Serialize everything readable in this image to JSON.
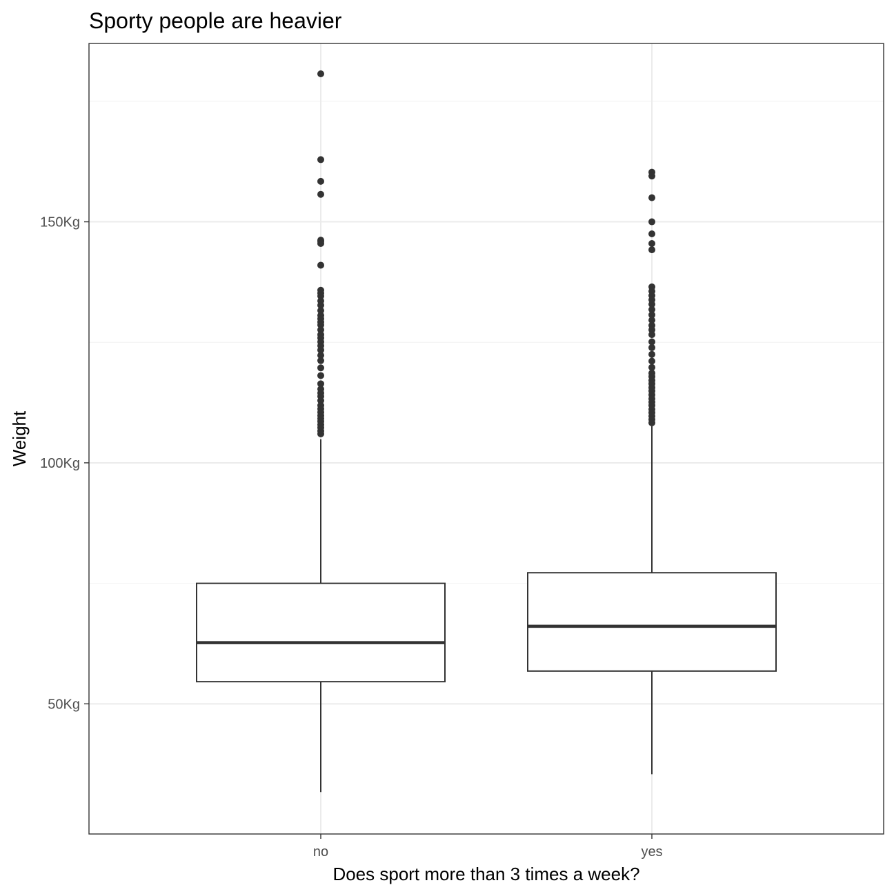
{
  "chart_data": {
    "type": "boxplot",
    "title": "Sporty people are heavier",
    "xlabel": "Does sport more than 3 times a week?",
    "ylabel": "Weight",
    "categories": [
      "no",
      "yes"
    ],
    "y_ticks": [
      50,
      100,
      150
    ],
    "y_tick_labels": [
      "50Kg",
      "100Kg",
      "150Kg"
    ],
    "y_minor_ticks": [
      75,
      125,
      175
    ],
    "ylim": [
      23,
      187
    ],
    "grid": true,
    "boxes": [
      {
        "category": "no",
        "whisker_low": 31.7,
        "q1": 54.6,
        "median": 62.7,
        "q3": 75.0,
        "whisker_high": 104.9,
        "outliers": [
          180.7,
          162.9,
          158.4,
          155.7,
          146.2,
          145.9,
          145.5,
          141.0,
          135.8,
          135.2,
          134.6,
          133.6,
          132.7,
          131.6,
          130.6,
          129.9,
          129.2,
          128.6,
          127.6,
          126.6,
          125.9,
          125.1,
          124.3,
          123.4,
          122.3,
          121.2,
          119.7,
          118.1,
          116.4,
          115.3,
          114.5,
          113.8,
          112.9,
          111.9,
          111.2,
          110.5,
          109.8,
          109.2,
          108.6,
          107.9,
          107.3,
          106.6,
          106.0
        ]
      },
      {
        "category": "yes",
        "whisker_low": 35.4,
        "q1": 56.8,
        "median": 66.1,
        "q3": 77.2,
        "whisker_high": 107.6,
        "outliers": [
          160.3,
          159.5,
          155.0,
          150.0,
          147.5,
          145.5,
          144.2,
          136.5,
          135.6,
          134.7,
          133.8,
          132.9,
          131.8,
          130.7,
          129.6,
          128.5,
          127.6,
          126.6,
          125.1,
          123.9,
          122.5,
          121.1,
          119.8,
          118.6,
          117.9,
          117.1,
          116.4,
          115.6,
          114.9,
          114.1,
          113.3,
          112.6,
          111.9,
          111.1,
          110.4,
          109.7,
          109.0,
          108.3
        ]
      }
    ]
  }
}
